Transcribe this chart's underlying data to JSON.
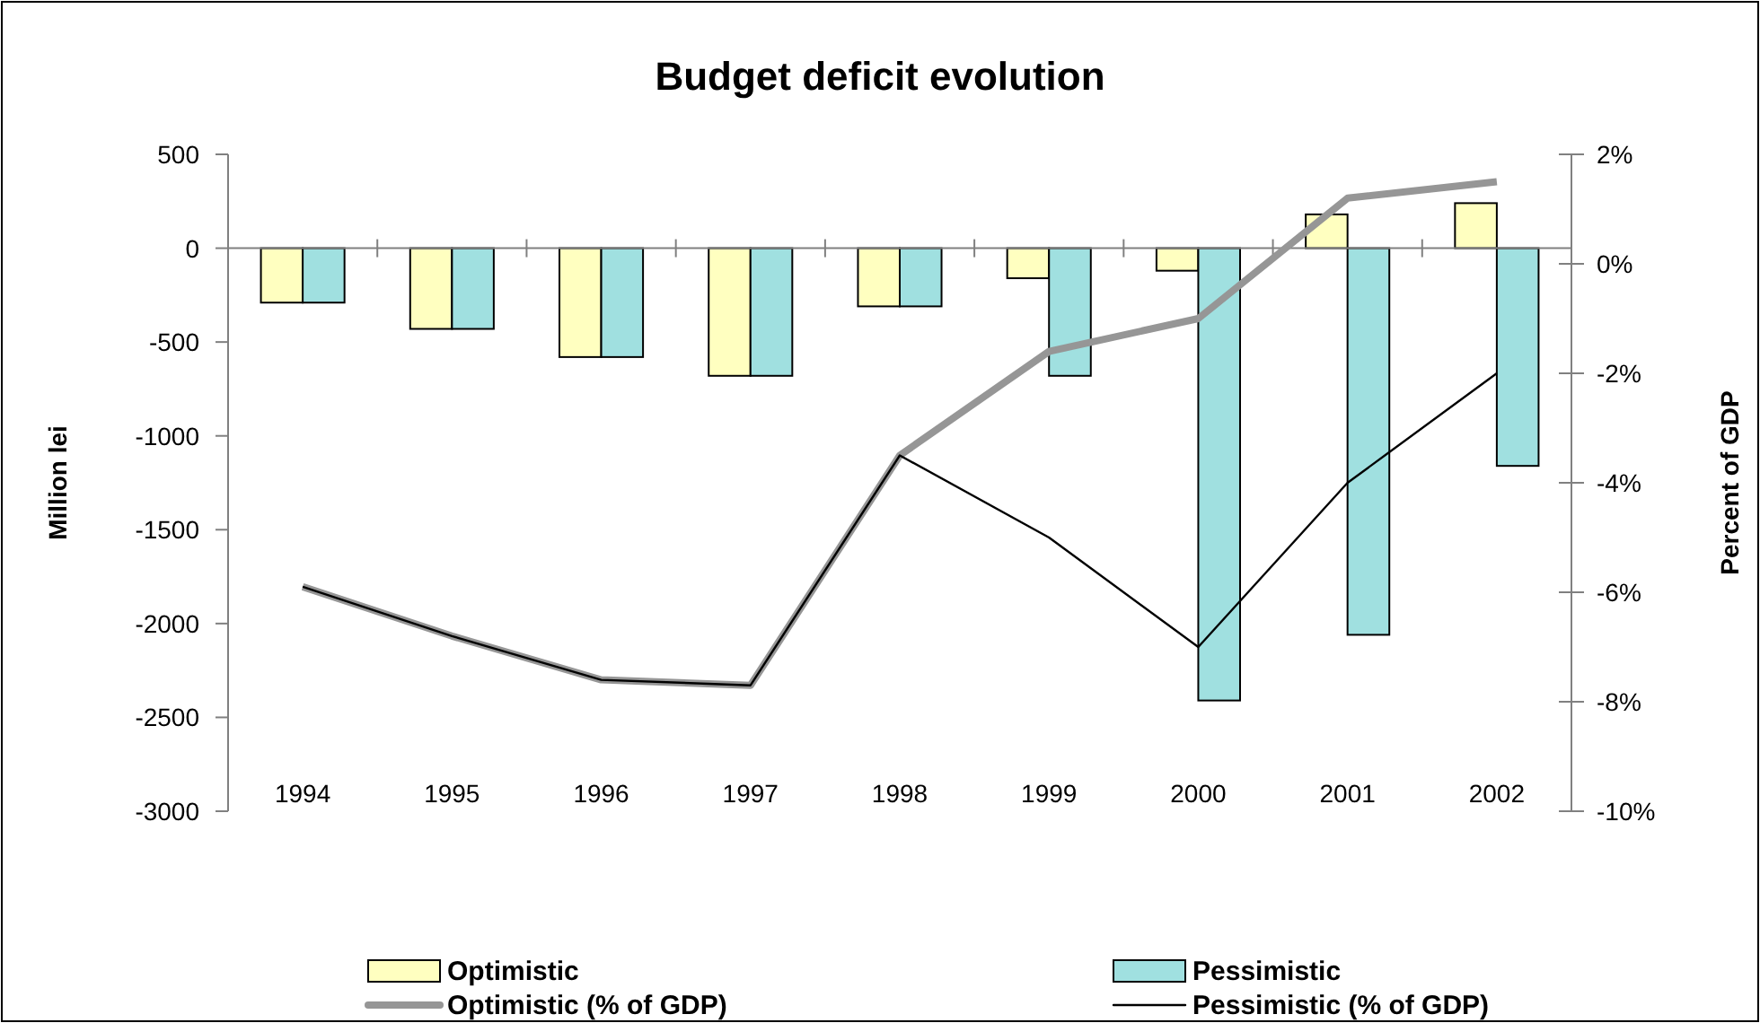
{
  "chart_data": {
    "type": "bar",
    "title": "Budget deficit evolution",
    "ylabel": "Million lei",
    "y2label": "Percent of GDP",
    "categories": [
      "1994",
      "1995",
      "1996",
      "1997",
      "1998",
      "1999",
      "2000",
      "2001",
      "2002"
    ],
    "series": [
      {
        "name": "Optimistic",
        "color": "#ffffc0",
        "values": [
          -290,
          -430,
          -580,
          -680,
          -310,
          -160,
          -120,
          180,
          240
        ]
      },
      {
        "name": "Pessimistic",
        "color": "#a0e0e0",
        "values": [
          -290,
          -430,
          -580,
          -680,
          -310,
          -680,
          -2410,
          -2060,
          -1160
        ]
      },
      {
        "name": "Optimistic (% of GDP)",
        "type": "line",
        "axis": "y2",
        "color": "#969696",
        "values": [
          -5.9,
          -6.8,
          -7.6,
          -7.7,
          -3.5,
          -1.6,
          -1.0,
          1.2,
          1.5
        ]
      },
      {
        "name": "Pessimistic (% of GDP)",
        "type": "line",
        "axis": "y2",
        "color": "#000000",
        "values": [
          -5.9,
          -6.8,
          -7.6,
          -7.7,
          -3.5,
          -5.0,
          -7.0,
          -4.0,
          -2.0
        ]
      }
    ],
    "ylim": [
      -3000,
      500
    ],
    "yticks": [
      -3000,
      -2500,
      -2000,
      -1500,
      -1000,
      -500,
      0,
      500
    ],
    "y2lim": [
      -10,
      2
    ],
    "y2ticks": [
      {
        "value": -10,
        "label": "-10%"
      },
      {
        "value": -8,
        "label": "-8%"
      },
      {
        "value": -6,
        "label": "-6%"
      },
      {
        "value": -4,
        "label": "-4%"
      },
      {
        "value": -2,
        "label": "-2%"
      },
      {
        "value": 0,
        "label": "0%"
      },
      {
        "value": 2,
        "label": "2%"
      }
    ],
    "legend": "bottom"
  }
}
